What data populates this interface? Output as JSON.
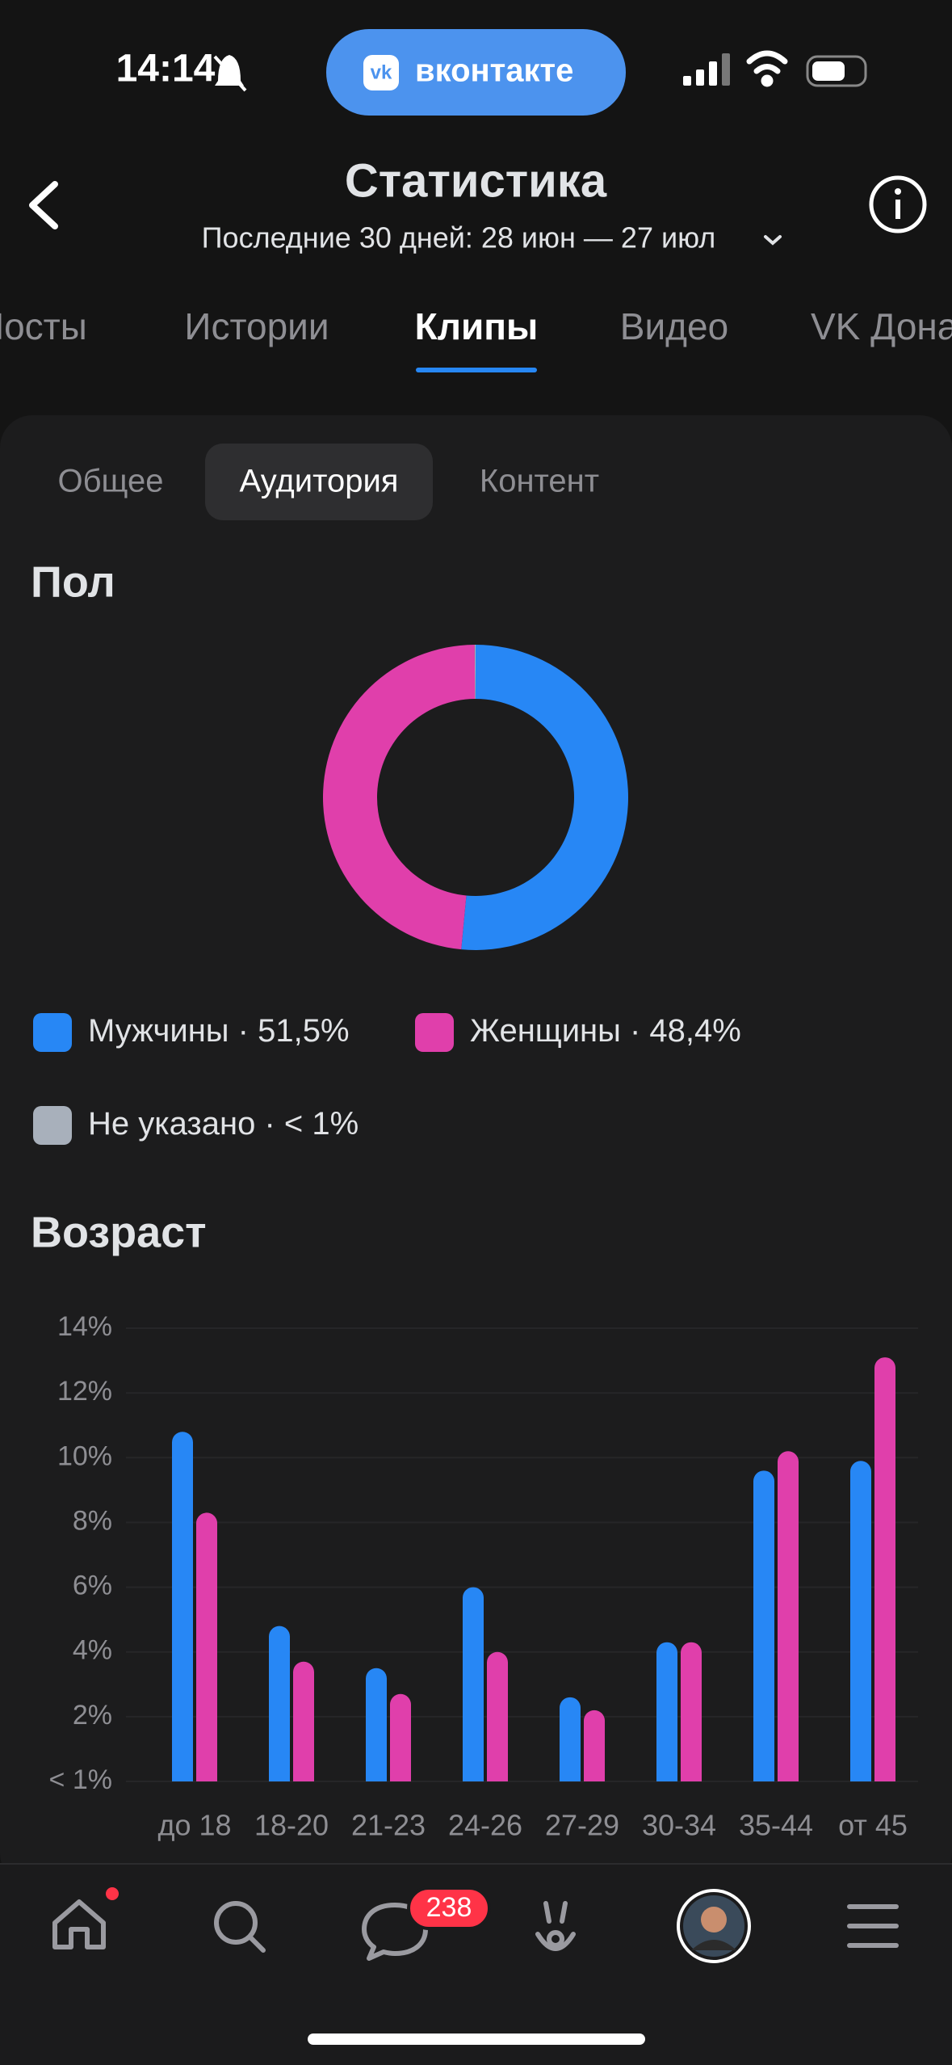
{
  "status_bar": {
    "time": "14:14",
    "app": "вконтакте"
  },
  "header": {
    "title": "Статистика",
    "subtitle": "Последние 30 дней: 28 июн — 27 июл"
  },
  "tabs": [
    "Посты",
    "Истории",
    "Клипы",
    "Видео",
    "VK Донаты"
  ],
  "subtabs": [
    "Общее",
    "Аудитория",
    "Контент"
  ],
  "chart_data": [
    {
      "type": "pie",
      "title": "Пол",
      "donut": true,
      "categories": [
        "Мужчины",
        "Женщины",
        "Не указано"
      ],
      "values": [
        51.5,
        48.4,
        0.1
      ],
      "value_labels": [
        "51,5%",
        "48,4%",
        "< 1%"
      ],
      "legend_separator": " · ",
      "colors": [
        "#2787f5",
        "#e03fab",
        "#a8b0bb"
      ]
    },
    {
      "type": "bar",
      "title": "Возраст",
      "categories": [
        "до 18",
        "18-20",
        "21-23",
        "24-26",
        "27-29",
        "30-34",
        "35-44",
        "от 45"
      ],
      "series": [
        {
          "color": "#2787f5",
          "values": [
            10.8,
            4.8,
            3.5,
            6.0,
            2.6,
            4.3,
            9.6,
            9.9
          ]
        },
        {
          "color": "#e03fab",
          "values": [
            8.3,
            3.7,
            2.7,
            4.0,
            2.2,
            4.3,
            10.2,
            13.1
          ]
        }
      ],
      "ylim": [
        0,
        14
      ],
      "yticks": [
        {
          "value": 0,
          "label": "< 1%"
        },
        {
          "value": 2,
          "label": "2%"
        },
        {
          "value": 4,
          "label": "4%"
        },
        {
          "value": 6,
          "label": "6%"
        },
        {
          "value": 8,
          "label": "8%"
        },
        {
          "value": 10,
          "label": "10%"
        },
        {
          "value": 12,
          "label": "12%"
        },
        {
          "value": 14,
          "label": "14%"
        }
      ],
      "grid": true
    }
  ],
  "bottom_bar": {
    "messages_badge": "238"
  }
}
